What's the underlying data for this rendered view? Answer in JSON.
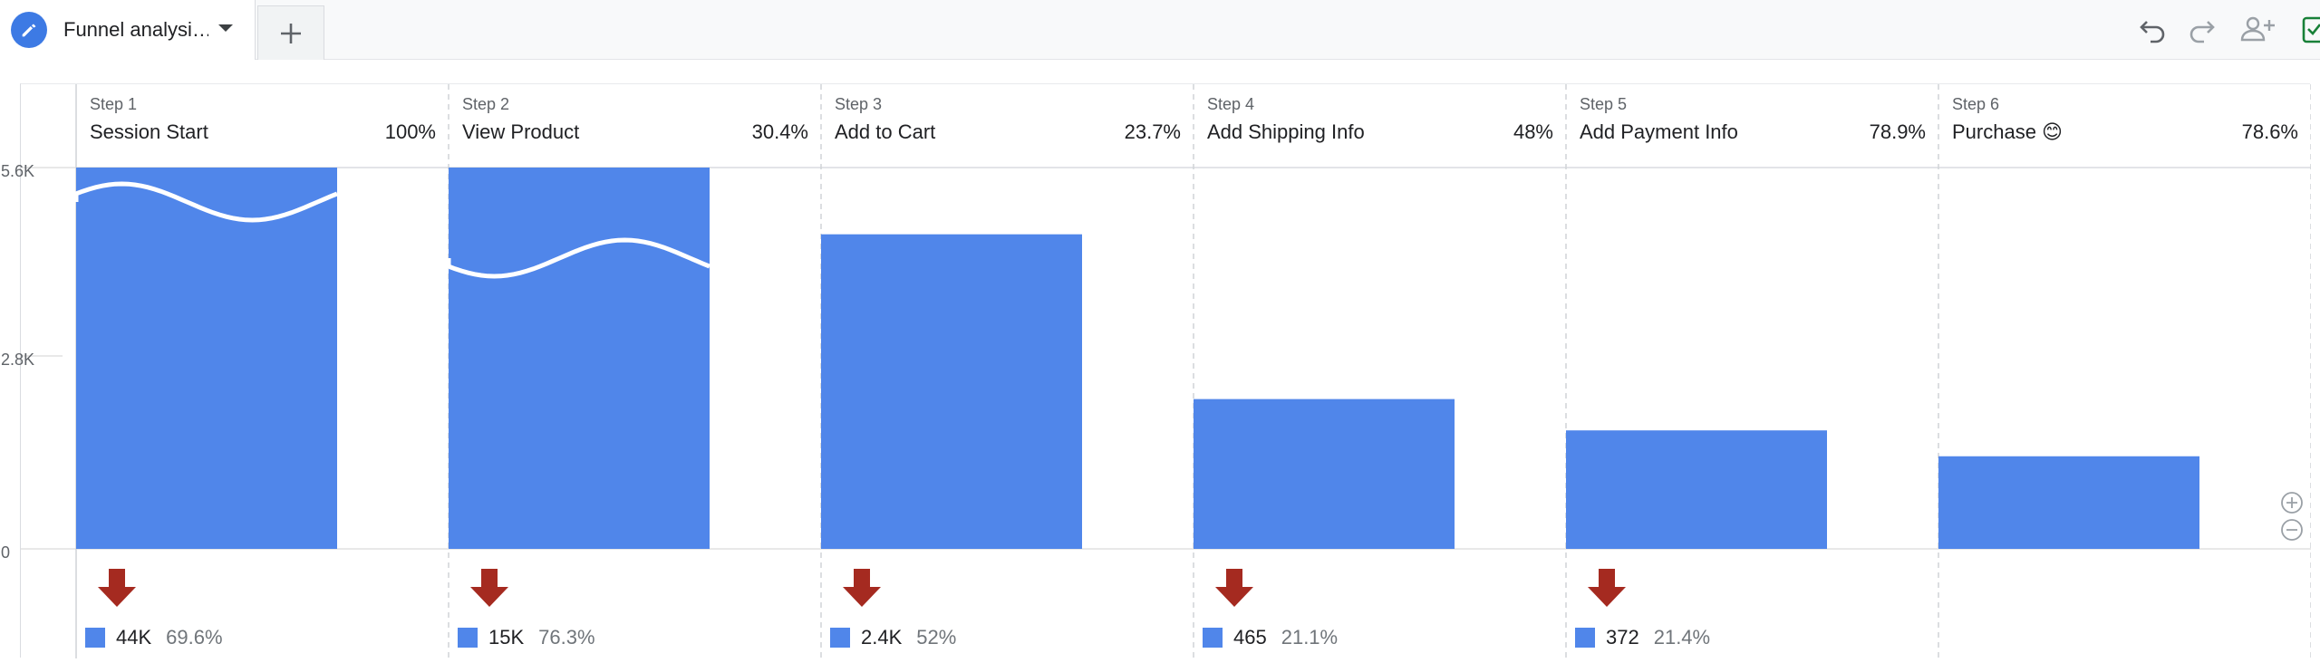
{
  "tab": {
    "title": "Funnel analysi…",
    "icon": "pencil-icon",
    "add_icon": "plus-icon"
  },
  "toolbar": {
    "icons": [
      "undo-icon",
      "redo-icon",
      "share-user-icon",
      "save-check-icon"
    ]
  },
  "colors": {
    "bar": "#5086ea",
    "drop_arrow": "#a52a20",
    "save_check": "#188038"
  },
  "chart_data": {
    "type": "bar",
    "y_ticks": [
      "5.6K",
      "2.8K",
      "0"
    ],
    "ylim": [
      0,
      5600
    ],
    "grid": "vertical-dashed",
    "steps": [
      {
        "step": "Step 1",
        "name": "Session Start",
        "completion_rate": "100%",
        "value": 5600,
        "truncated": true,
        "abandon_count": "44K",
        "abandon_rate": "69.6%"
      },
      {
        "step": "Step 2",
        "name": "View Product",
        "completion_rate": "30.4%",
        "value": 5600,
        "truncated": true,
        "abandon_count": "15K",
        "abandon_rate": "76.3%"
      },
      {
        "step": "Step 3",
        "name": "Add to Cart",
        "completion_rate": "23.7%",
        "value": 4620,
        "truncated": false,
        "abandon_count": "2.4K",
        "abandon_rate": "52%"
      },
      {
        "step": "Step 4",
        "name": "Add Shipping Info",
        "completion_rate": "48%",
        "value": 2200,
        "truncated": false,
        "abandon_count": "465",
        "abandon_rate": "21.1%"
      },
      {
        "step": "Step 5",
        "name": "Add Payment Info",
        "completion_rate": "78.9%",
        "value": 1740,
        "truncated": false,
        "abandon_count": "372",
        "abandon_rate": "21.4%"
      },
      {
        "step": "Step 6",
        "name": "Purchase 😊",
        "completion_rate": "78.6%",
        "value": 1360,
        "truncated": false,
        "abandon_count": "",
        "abandon_rate": ""
      }
    ]
  },
  "zoom": {
    "icons": [
      "zoom-in-icon",
      "zoom-out-icon"
    ]
  }
}
